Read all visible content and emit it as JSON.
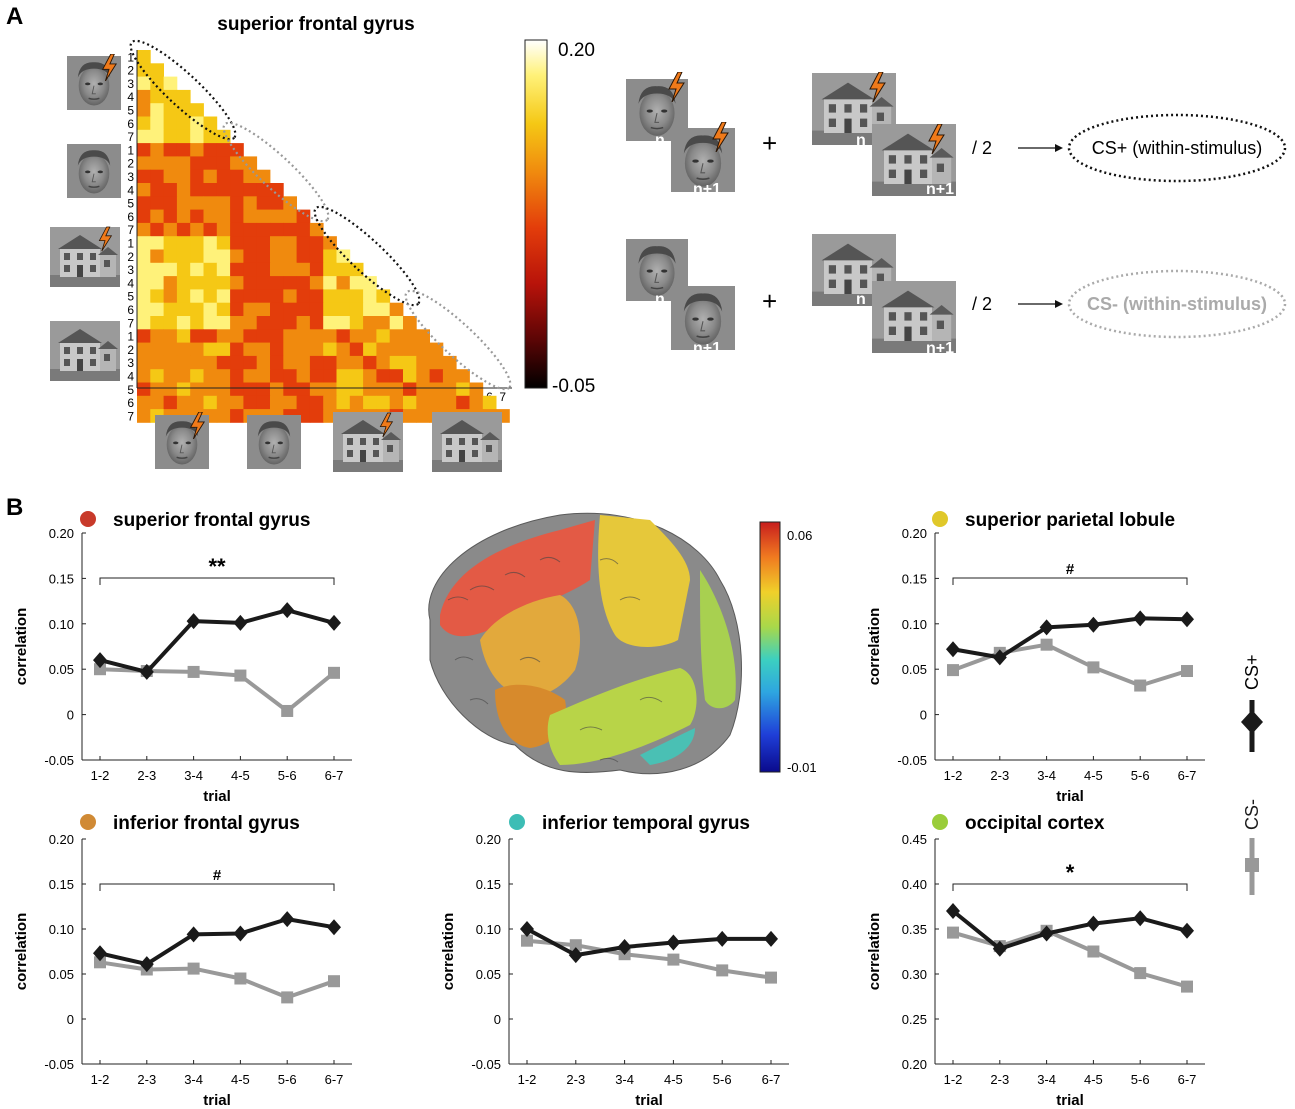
{
  "panelA": {
    "label": "A",
    "title": "superior frontal gyrus",
    "matrix_ticks": [
      "1",
      "2",
      "3",
      "4",
      "5",
      "6",
      "7"
    ],
    "colorbar": {
      "max": "0.20",
      "min": "-0.05",
      "stops": [
        "#ffffff",
        "#fff27a",
        "#f5c815",
        "#f08a0e",
        "#e33d0b",
        "#b8130a",
        "#5c0505",
        "#000000"
      ]
    },
    "equations": [
      {
        "label_n": "n",
        "label_n1": "n+1",
        "op": "+",
        "div": "/ 2",
        "arrow": "→",
        "result": "CS+ (within-stimulus)",
        "style": "black"
      },
      {
        "label_n": "n",
        "label_n1": "n+1",
        "op": "+",
        "div": "/ 2",
        "arrow": "→",
        "result": "CS- (within-stimulus)",
        "style": "gray"
      }
    ]
  },
  "panelB": {
    "label": "B",
    "brain_colorbar": {
      "max": "0.06",
      "min": "-0.01"
    },
    "legend": {
      "cs_plus": "CS+",
      "cs_minus": "CS-"
    },
    "colors": {
      "cs_plus": "#1a1a1a",
      "cs_minus": "#999999"
    }
  },
  "chart_data": [
    {
      "type": "line",
      "title": "superior frontal gyrus",
      "dot_color": "#c83a2a",
      "xlabel": "trial",
      "ylabel": "correlation",
      "categories": [
        "1-2",
        "2-3",
        "3-4",
        "4-5",
        "5-6",
        "6-7"
      ],
      "yticks": [
        "-0.05",
        "0",
        "0.05",
        "0.10",
        "0.15",
        "0.20"
      ],
      "ylim": [
        -0.05,
        0.2
      ],
      "series": [
        {
          "name": "CS+",
          "values": [
            0.06,
            0.047,
            0.103,
            0.101,
            0.115,
            0.101
          ]
        },
        {
          "name": "CS-",
          "values": [
            0.05,
            0.048,
            0.047,
            0.043,
            0.004,
            0.046
          ]
        }
      ],
      "significance": "**"
    },
    {
      "type": "line",
      "title": "superior parietal lobule",
      "dot_color": "#e0c82a",
      "xlabel": "trial",
      "ylabel": "correlation",
      "categories": [
        "1-2",
        "2-3",
        "3-4",
        "4-5",
        "5-6",
        "6-7"
      ],
      "yticks": [
        "-0.05",
        "0",
        "0.05",
        "0.10",
        "0.15",
        "0.20"
      ],
      "ylim": [
        -0.05,
        0.2
      ],
      "series": [
        {
          "name": "CS+",
          "values": [
            0.072,
            0.063,
            0.096,
            0.099,
            0.106,
            0.105
          ]
        },
        {
          "name": "CS-",
          "values": [
            0.049,
            0.068,
            0.077,
            0.052,
            0.032,
            0.048
          ]
        }
      ],
      "significance": "#"
    },
    {
      "type": "line",
      "title": "inferior frontal gyrus",
      "dot_color": "#d08a35",
      "xlabel": "trial",
      "ylabel": "correlation",
      "categories": [
        "1-2",
        "2-3",
        "3-4",
        "4-5",
        "5-6",
        "6-7"
      ],
      "yticks": [
        "-0.05",
        "0",
        "0.05",
        "0.10",
        "0.15",
        "0.20"
      ],
      "ylim": [
        -0.05,
        0.2
      ],
      "series": [
        {
          "name": "CS+",
          "values": [
            0.073,
            0.061,
            0.094,
            0.095,
            0.111,
            0.102
          ]
        },
        {
          "name": "CS-",
          "values": [
            0.063,
            0.055,
            0.056,
            0.045,
            0.024,
            0.042
          ]
        }
      ],
      "significance": "#"
    },
    {
      "type": "line",
      "title": "inferior temporal gyrus",
      "dot_color": "#3dbdb5",
      "xlabel": "trial",
      "ylabel": "correlation",
      "categories": [
        "1-2",
        "2-3",
        "3-4",
        "4-5",
        "5-6",
        "6-7"
      ],
      "yticks": [
        "-0.05",
        "0",
        "0.05",
        "0.10",
        "0.15",
        "0.20"
      ],
      "ylim": [
        -0.05,
        0.2
      ],
      "series": [
        {
          "name": "CS+",
          "values": [
            0.1,
            0.071,
            0.08,
            0.085,
            0.089,
            0.089
          ]
        },
        {
          "name": "CS-",
          "values": [
            0.087,
            0.082,
            0.072,
            0.066,
            0.054,
            0.046
          ]
        }
      ],
      "significance": ""
    },
    {
      "type": "line",
      "title": "occipital cortex",
      "dot_color": "#9acd3a",
      "xlabel": "trial",
      "ylabel": "correlation",
      "categories": [
        "1-2",
        "2-3",
        "3-4",
        "4-5",
        "5-6",
        "6-7"
      ],
      "yticks": [
        "0.20",
        "0.25",
        "0.30",
        "0.35",
        "0.40",
        "0.45"
      ],
      "ylim": [
        0.2,
        0.45
      ],
      "series": [
        {
          "name": "CS+",
          "values": [
            0.37,
            0.328,
            0.345,
            0.356,
            0.362,
            0.348
          ]
        },
        {
          "name": "CS-",
          "values": [
            0.346,
            0.331,
            0.348,
            0.325,
            0.301,
            0.286
          ]
        }
      ],
      "significance": "*"
    }
  ]
}
